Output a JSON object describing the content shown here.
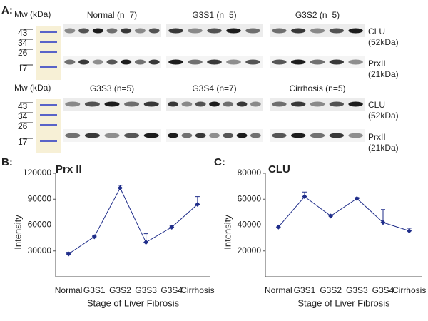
{
  "blot_panel": {
    "label": "A:",
    "rows": [
      {
        "mw_label": "Mw (kDa)",
        "markers": [
          43,
          34,
          26,
          17
        ],
        "groups": [
          "Normal (n=7)",
          "G3S1 (n=5)",
          "G3S2 (n=5)"
        ],
        "proteins": [
          {
            "name": "CLU",
            "size": "(52kDa)"
          },
          {
            "name": "PrxII",
            "size": "(21kDa)"
          }
        ]
      },
      {
        "mw_label": "Mw (kDa)",
        "markers": [
          43,
          34,
          26,
          17
        ],
        "groups": [
          "G3S3 (n=5)",
          "G3S4 (n=7)",
          "Cirrhosis (n=5)"
        ],
        "proteins": [
          {
            "name": "CLU",
            "size": "(52kDa)"
          },
          {
            "name": "PrxII",
            "size": "(21kDa)"
          }
        ]
      }
    ]
  },
  "chart_data": [
    {
      "type": "line",
      "panel_label": "B:",
      "title": "Prx II",
      "categories": [
        "Normal",
        "G3S1",
        "G3S2",
        "G3S3",
        "G3S4",
        "Cirrhosis"
      ],
      "values": [
        26500,
        46500,
        103000,
        40000,
        57500,
        84000
      ],
      "errors": [
        2000,
        1000,
        3000,
        10000,
        1500,
        9000
      ],
      "color": "#1f2d8a",
      "xlabel": "Stage of Liver Fibrosis",
      "ylabel": "Intensity",
      "ylim": [
        0,
        120000
      ],
      "yticks": [
        30000,
        60000,
        90000,
        120000
      ]
    },
    {
      "type": "line",
      "panel_label": "C:",
      "title": "CLU",
      "categories": [
        "Normal",
        "G3S1",
        "G3S2",
        "G3S3",
        "G3S4",
        "Cirrhosis"
      ],
      "values": [
        38500,
        62000,
        47000,
        60500,
        42000,
        35500
      ],
      "errors": [
        1500,
        3500,
        1000,
        800,
        10000,
        2000
      ],
      "color": "#1f2d8a",
      "xlabel": "Stage of Liver Fibrosis",
      "ylabel": "Intensity",
      "ylim": [
        0,
        80000
      ],
      "yticks": [
        20000,
        40000,
        60000,
        80000
      ]
    }
  ]
}
